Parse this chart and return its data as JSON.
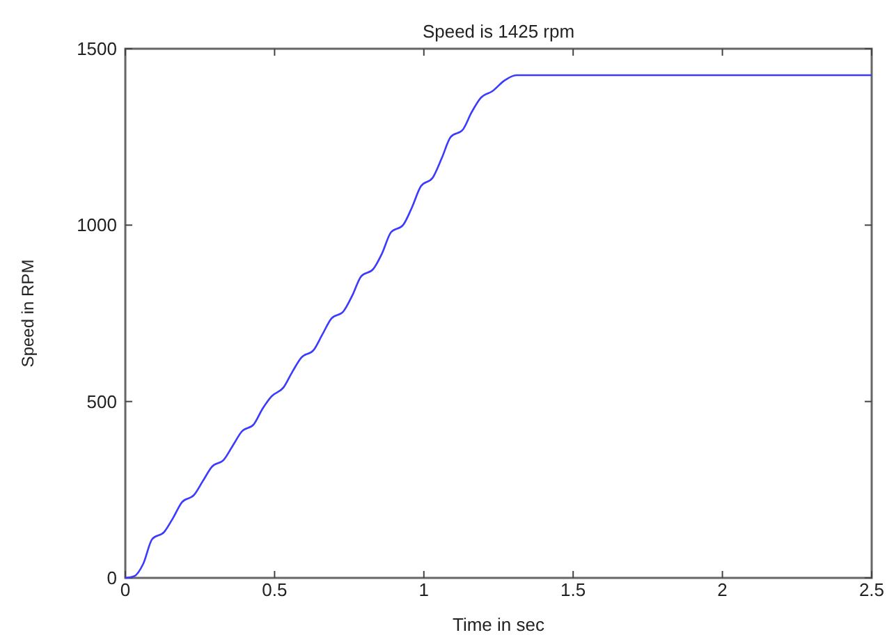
{
  "chart_data": {
    "type": "line",
    "title": "Speed is 1425 rpm",
    "xlabel": "Time in sec",
    "ylabel": "Speed in RPM",
    "xlim": [
      0,
      2.5
    ],
    "xticks": [
      0,
      0.5,
      1,
      1.5,
      2,
      2.5
    ],
    "ylim": [
      0,
      1500
    ],
    "yticks": [
      0,
      500,
      1000,
      1500
    ],
    "grid": false,
    "marker": "none",
    "line_style": "solid",
    "series": [
      {
        "color": "#3b3bff",
        "x": [
          0,
          0.03,
          0.06,
          0.09,
          0.13,
          0.16,
          0.19,
          0.23,
          0.26,
          0.29,
          0.33,
          0.36,
          0.39,
          0.43,
          0.46,
          0.49,
          0.53,
          0.56,
          0.59,
          0.63,
          0.66,
          0.69,
          0.73,
          0.76,
          0.79,
          0.83,
          0.86,
          0.89,
          0.93,
          0.96,
          0.99,
          1.03,
          1.06,
          1.09,
          1.13,
          1.16,
          1.19,
          1.23,
          1.27,
          1.31,
          2.5
        ],
        "values": [
          0,
          5,
          40,
          110,
          130,
          170,
          215,
          235,
          275,
          315,
          335,
          375,
          415,
          435,
          480,
          515,
          540,
          585,
          625,
          645,
          690,
          735,
          755,
          800,
          855,
          875,
          920,
          980,
          1000,
          1050,
          1110,
          1135,
          1190,
          1250,
          1270,
          1320,
          1360,
          1380,
          1410,
          1425,
          1425
        ]
      }
    ]
  }
}
